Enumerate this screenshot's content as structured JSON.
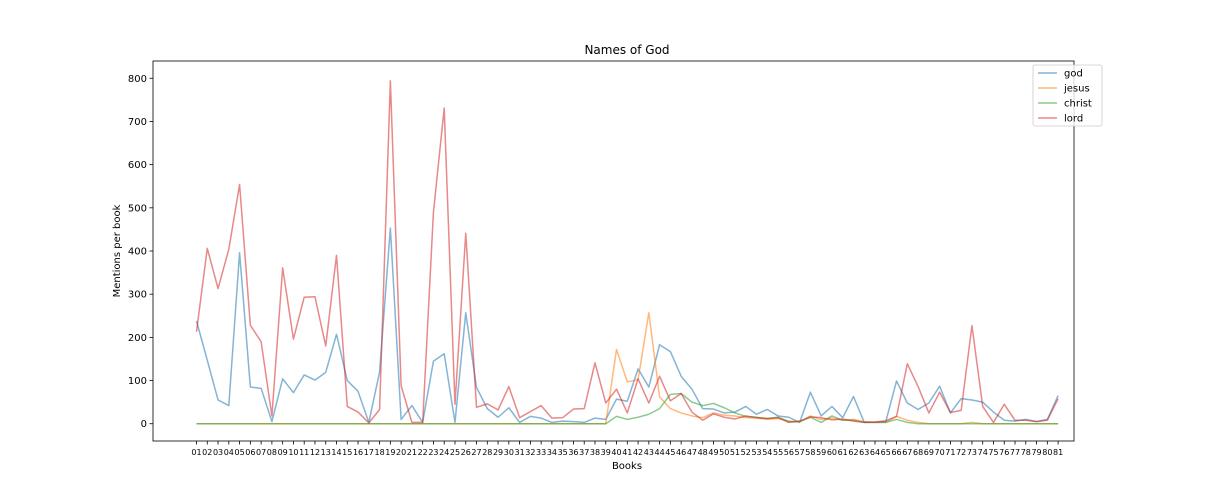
{
  "chart_data": {
    "type": "line",
    "title": "Names of God",
    "xlabel": "Books",
    "ylabel": "Mentions per book",
    "ylim": [
      -40,
      840
    ],
    "yticks": [
      0,
      100,
      200,
      300,
      400,
      500,
      600,
      700,
      800
    ],
    "grid": false,
    "legend_position": "top-right",
    "categories": [
      "01",
      "02",
      "03",
      "04",
      "05",
      "06",
      "07",
      "08",
      "09",
      "10",
      "11",
      "12",
      "13",
      "14",
      "15",
      "16",
      "17",
      "18",
      "19",
      "20",
      "21",
      "22",
      "23",
      "24",
      "25",
      "26",
      "27",
      "28",
      "29",
      "30",
      "31",
      "32",
      "33",
      "34",
      "35",
      "36",
      "37",
      "38",
      "39",
      "40",
      "41",
      "42",
      "43",
      "44",
      "45",
      "46",
      "47",
      "48",
      "49",
      "50",
      "51",
      "52",
      "53",
      "54",
      "55",
      "56",
      "57",
      "58",
      "59",
      "60",
      "61",
      "62",
      "63",
      "64",
      "65",
      "66",
      "67",
      "68",
      "69",
      "70",
      "71",
      "72",
      "73",
      "74",
      "75",
      "76",
      "77",
      "78",
      "79",
      "80",
      "81"
    ],
    "series": [
      {
        "name": "god",
        "color": "#1f77b4",
        "values": [
          238,
          147,
          55,
          42,
          396,
          85,
          82,
          5,
          104,
          72,
          113,
          101,
          119,
          207,
          100,
          75,
          3,
          120,
          453,
          10,
          42,
          3,
          145,
          162,
          3,
          257,
          84,
          35,
          15,
          37,
          3,
          17,
          13,
          3,
          6,
          5,
          3,
          13,
          10,
          57,
          52,
          127,
          85,
          183,
          167,
          110,
          80,
          35,
          34,
          25,
          27,
          40,
          22,
          33,
          18,
          15,
          3,
          73,
          18,
          40,
          14,
          63,
          3,
          3,
          5,
          99,
          48,
          33,
          48,
          87,
          25,
          58,
          55,
          50,
          27,
          8,
          6,
          10,
          5,
          10,
          65
        ]
      },
      {
        "name": "jesus",
        "color": "#ff7f0e",
        "values": [
          0,
          0,
          0,
          0,
          0,
          0,
          0,
          0,
          0,
          0,
          0,
          0,
          0,
          0,
          0,
          0,
          0,
          0,
          0,
          0,
          0,
          0,
          0,
          0,
          0,
          0,
          0,
          0,
          0,
          0,
          0,
          0,
          0,
          0,
          0,
          0,
          0,
          0,
          0,
          172,
          97,
          102,
          257,
          62,
          35,
          25,
          18,
          14,
          25,
          20,
          18,
          14,
          13,
          10,
          12,
          6,
          4,
          18,
          10,
          13,
          8,
          10,
          5,
          3,
          3,
          17,
          8,
          3,
          0,
          0,
          0,
          0,
          3,
          0,
          0,
          0,
          0,
          0,
          0,
          0,
          0
        ]
      },
      {
        "name": "christ",
        "color": "#2ca02c",
        "values": [
          0,
          0,
          0,
          0,
          0,
          0,
          0,
          0,
          0,
          0,
          0,
          0,
          0,
          0,
          0,
          0,
          0,
          0,
          0,
          0,
          0,
          0,
          0,
          0,
          0,
          0,
          0,
          0,
          0,
          0,
          0,
          0,
          0,
          0,
          0,
          0,
          0,
          0,
          0,
          17,
          10,
          15,
          22,
          35,
          68,
          70,
          50,
          42,
          47,
          37,
          25,
          17,
          15,
          12,
          15,
          5,
          5,
          15,
          3,
          18,
          8,
          8,
          3,
          3,
          3,
          10,
          3,
          0,
          0,
          0,
          0,
          0,
          0,
          0,
          0,
          0,
          0,
          0,
          0,
          0,
          0
        ]
      },
      {
        "name": "lord",
        "color": "#d62728",
        "values": [
          213,
          406,
          313,
          404,
          554,
          228,
          190,
          18,
          361,
          196,
          293,
          294,
          180,
          390,
          40,
          27,
          2,
          33,
          794,
          88,
          3,
          3,
          490,
          731,
          45,
          441,
          38,
          46,
          32,
          86,
          14,
          28,
          42,
          13,
          14,
          34,
          35,
          141,
          48,
          80,
          25,
          104,
          48,
          110,
          53,
          70,
          27,
          8,
          23,
          15,
          11,
          18,
          14,
          12,
          14,
          3,
          6,
          16,
          14,
          9,
          11,
          6,
          3,
          4,
          7,
          17,
          139,
          86,
          25,
          73,
          26,
          31,
          227,
          40,
          3,
          45,
          8,
          8,
          5,
          8,
          58
        ]
      }
    ]
  }
}
